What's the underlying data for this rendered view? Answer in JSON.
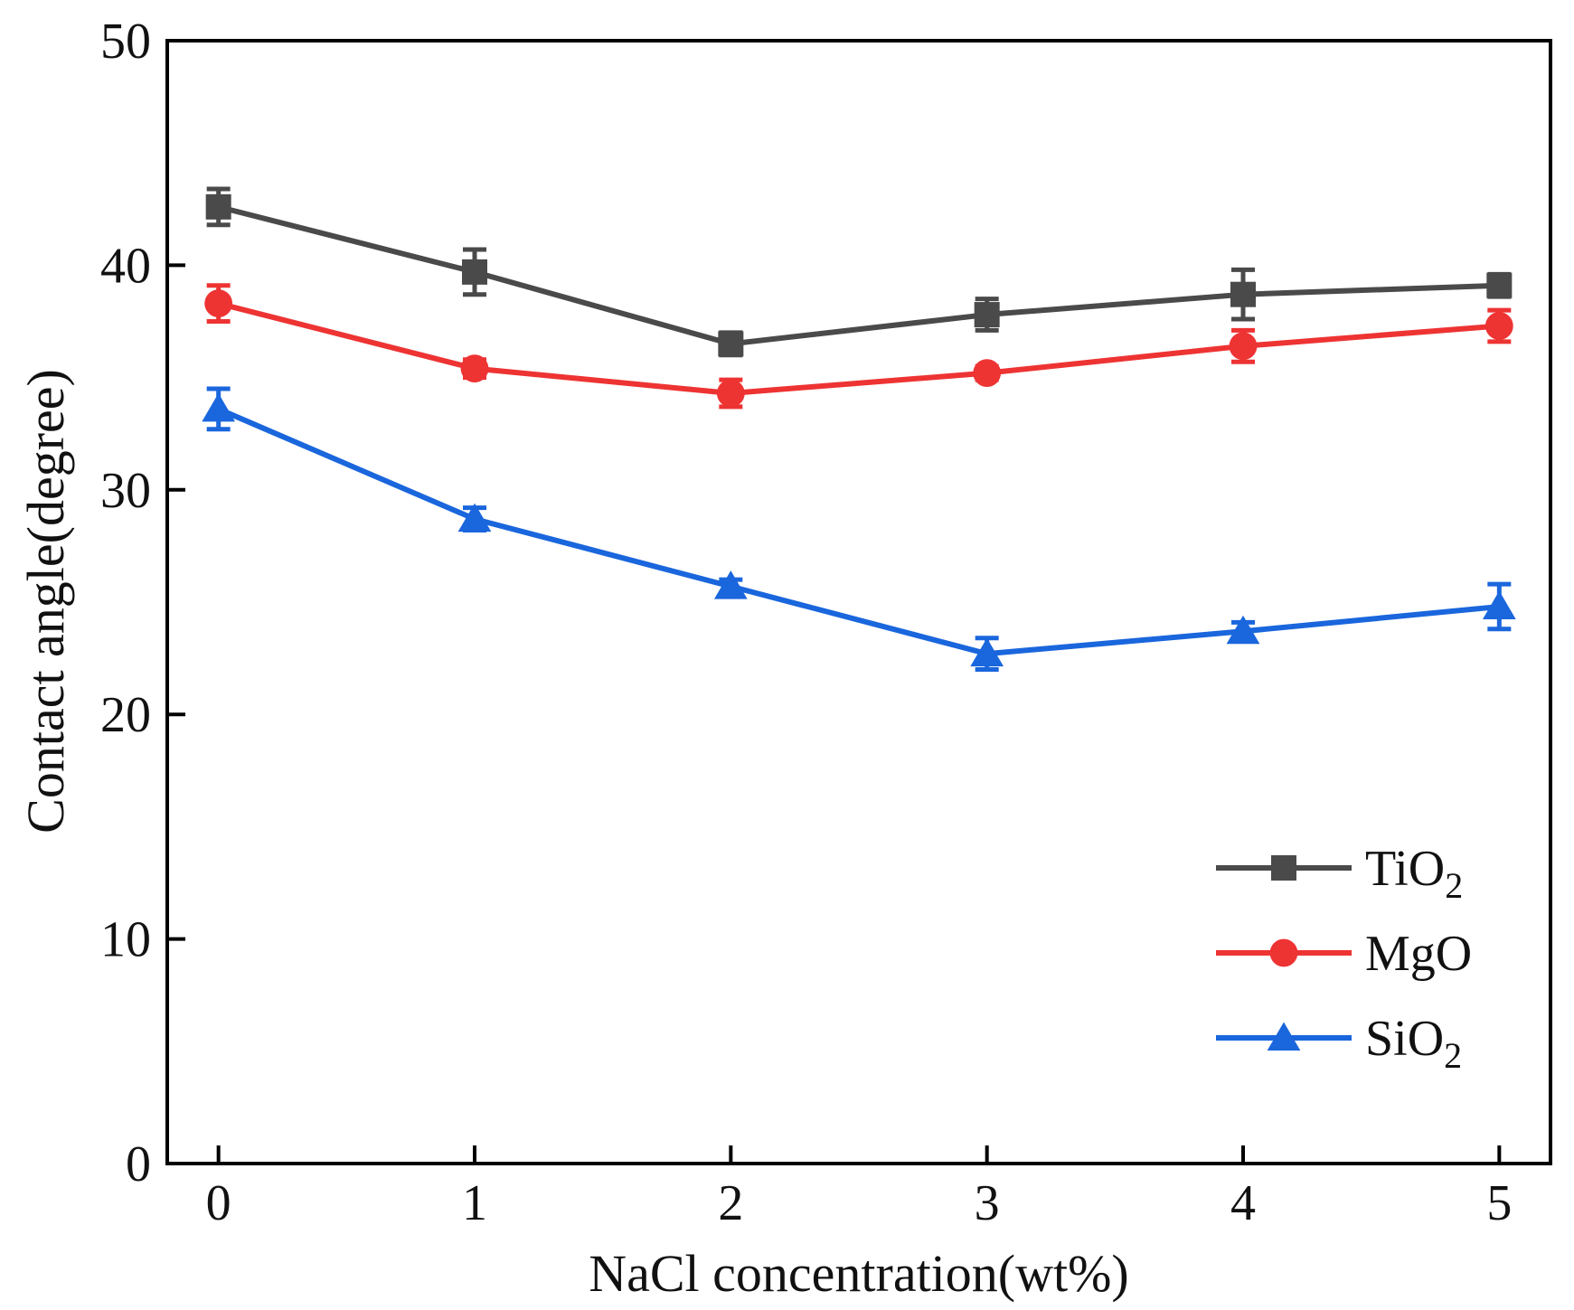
{
  "chart_data": {
    "type": "line",
    "title": "",
    "xlabel": "NaCl concentration(wt%)",
    "ylabel": "Contact angle(degree)",
    "x": [
      0,
      1,
      2,
      3,
      4,
      5
    ],
    "xticks": [
      "0",
      "1",
      "2",
      "3",
      "4",
      "5"
    ],
    "yticks": [
      "0",
      "10",
      "20",
      "30",
      "40",
      "50"
    ],
    "xlim": [
      -0.2,
      5.2
    ],
    "ylim": [
      0,
      50
    ],
    "grid": false,
    "legend_position": "bottom-right",
    "series": [
      {
        "name": "TiO",
        "subscript": "2",
        "color": "#4a4a4a",
        "marker": "square",
        "values": [
          42.6,
          39.7,
          36.5,
          37.8,
          38.7,
          39.1
        ],
        "errors": [
          0.8,
          1.0,
          0.5,
          0.7,
          1.1,
          0.5
        ]
      },
      {
        "name": "MgO",
        "subscript": "",
        "color": "#ee3333",
        "marker": "circle",
        "values": [
          38.3,
          35.4,
          34.3,
          35.2,
          36.4,
          37.3
        ],
        "errors": [
          0.8,
          0.4,
          0.6,
          0.3,
          0.7,
          0.7
        ]
      },
      {
        "name": "SiO",
        "subscript": "2",
        "color": "#1a66dd",
        "marker": "triangle",
        "values": [
          33.6,
          28.7,
          25.7,
          22.7,
          23.7,
          24.8
        ],
        "errors": [
          0.9,
          0.5,
          0.3,
          0.7,
          0.4,
          1.0
        ]
      }
    ]
  }
}
